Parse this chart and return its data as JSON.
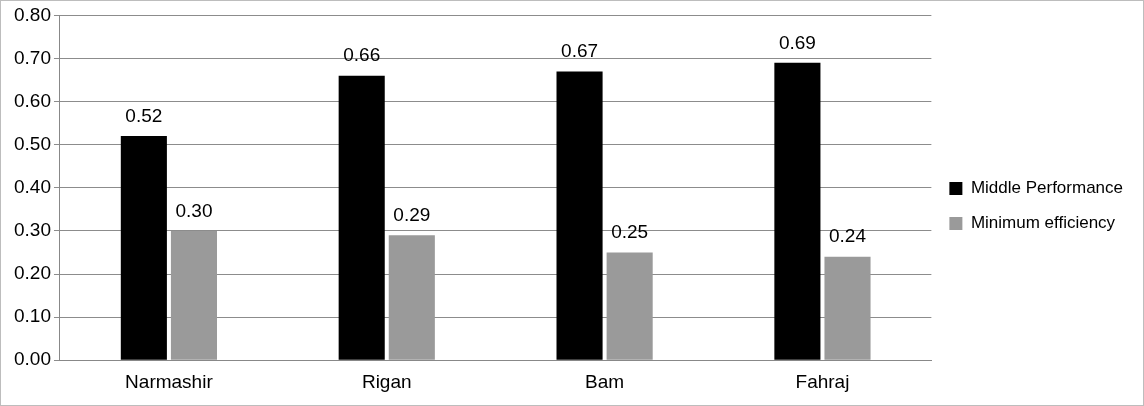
{
  "chart_data": {
    "type": "bar",
    "categories": [
      "Narmashir",
      "Rigan",
      "Bam",
      "Fahraj"
    ],
    "series": [
      {
        "name": "Middle Performance",
        "color": "#000000",
        "values": [
          0.52,
          0.66,
          0.67,
          0.69
        ],
        "value_labels": [
          "0.52",
          "0.66",
          "0.67",
          "0.69"
        ]
      },
      {
        "name": "Minimum efficiency",
        "color": "#9a9a9a",
        "values": [
          0.3,
          0.29,
          0.25,
          0.24
        ],
        "value_labels": [
          "0.30",
          "0.29",
          "0.25",
          "0.24"
        ]
      }
    ],
    "ylim": [
      0,
      0.8
    ],
    "yticks": [
      {
        "value": 0,
        "label": "0.00"
      },
      {
        "value": 0.1,
        "label": "0.10"
      },
      {
        "value": 0.2,
        "label": "0.20"
      },
      {
        "value": 0.3,
        "label": "0.30"
      },
      {
        "value": 0.4,
        "label": "0.40"
      },
      {
        "value": 0.5,
        "label": "0.50"
      },
      {
        "value": 0.6,
        "label": "0.60"
      },
      {
        "value": 0.7,
        "label": "0.70"
      },
      {
        "value": 0.8,
        "label": "0.80"
      }
    ],
    "grid": "y",
    "legend": "right"
  }
}
